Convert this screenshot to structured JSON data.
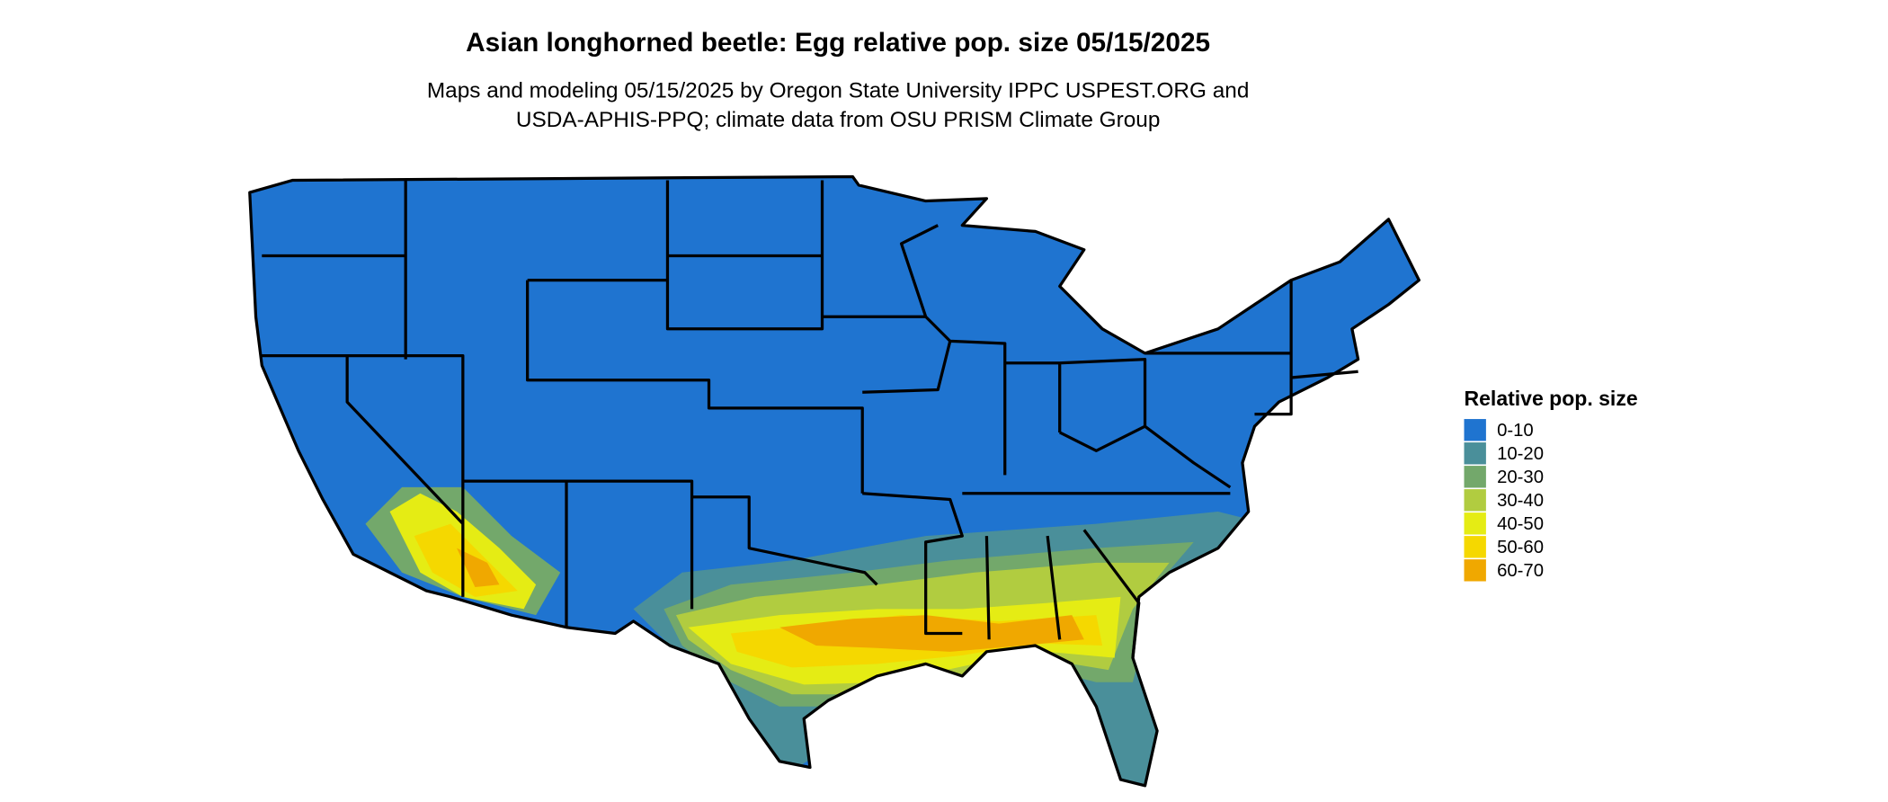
{
  "title": "Asian longhorned beetle: Egg relative pop. size 05/15/2025",
  "subtitle_lines": [
    "Maps and modeling 05/15/2025 by Oregon State University IPPC USPEST.ORG and",
    "USDA-APHIS-PPQ; climate data from OSU PRISM Climate Group"
  ],
  "legend": {
    "title": "Relative pop. size",
    "items": [
      {
        "label": "0-10",
        "color": "#1f74d0"
      },
      {
        "label": "10-20",
        "color": "#4a8f9a"
      },
      {
        "label": "20-30",
        "color": "#73a86b"
      },
      {
        "label": "30-40",
        "color": "#b1cc40"
      },
      {
        "label": "40-50",
        "color": "#e5ec14"
      },
      {
        "label": "50-60",
        "color": "#f5d800"
      },
      {
        "label": "60-70",
        "color": "#f0a800"
      }
    ]
  }
}
